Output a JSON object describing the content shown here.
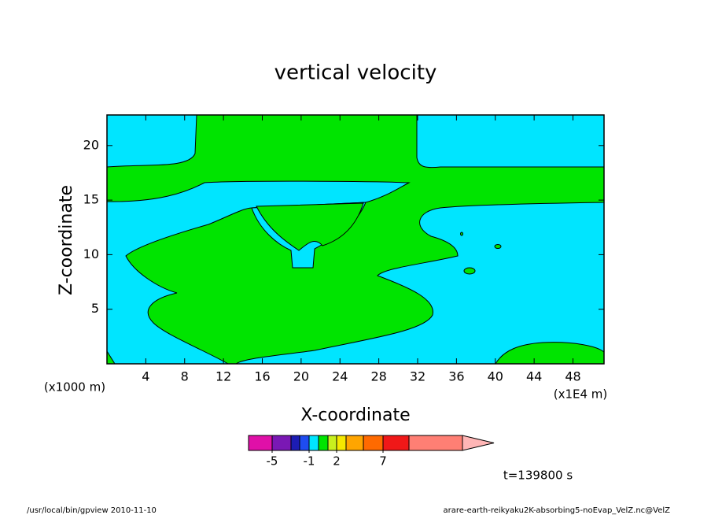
{
  "chart_data": {
    "type": "contour",
    "title": "vertical velocity",
    "xlabel": "X-coordinate",
    "ylabel": "Z-coordinate",
    "xlabel_unit": "(x1E4 m)",
    "ylabel_unit": "(x1000 m)",
    "xlim": [
      0,
      51.2
    ],
    "ylim": [
      0,
      22.8
    ],
    "xticks": [
      4,
      8,
      12,
      16,
      20,
      24,
      28,
      32,
      36,
      40,
      44,
      48
    ],
    "yticks": [
      5,
      10,
      15,
      20
    ],
    "colorbar": {
      "colors": [
        "#e010a8",
        "#7a18b4",
        "#1c1cb4",
        "#1e4cf0",
        "#00e5ff",
        "#00e400",
        "#c8f01e",
        "#f5e800",
        "#ffa500",
        "#ff6a00",
        "#f01818",
        "#ff7f74",
        "#ffb6b6"
      ],
      "ticks": [
        -5,
        -1,
        2,
        7
      ]
    },
    "annotation": "t=139800 s",
    "footer_left": "/usr/local/bin/gpview  2010-11-10",
    "footer_right": "arare-earth-reikyaku2K-absorbing5-noEvap_VelZ.nc@VelZ"
  }
}
